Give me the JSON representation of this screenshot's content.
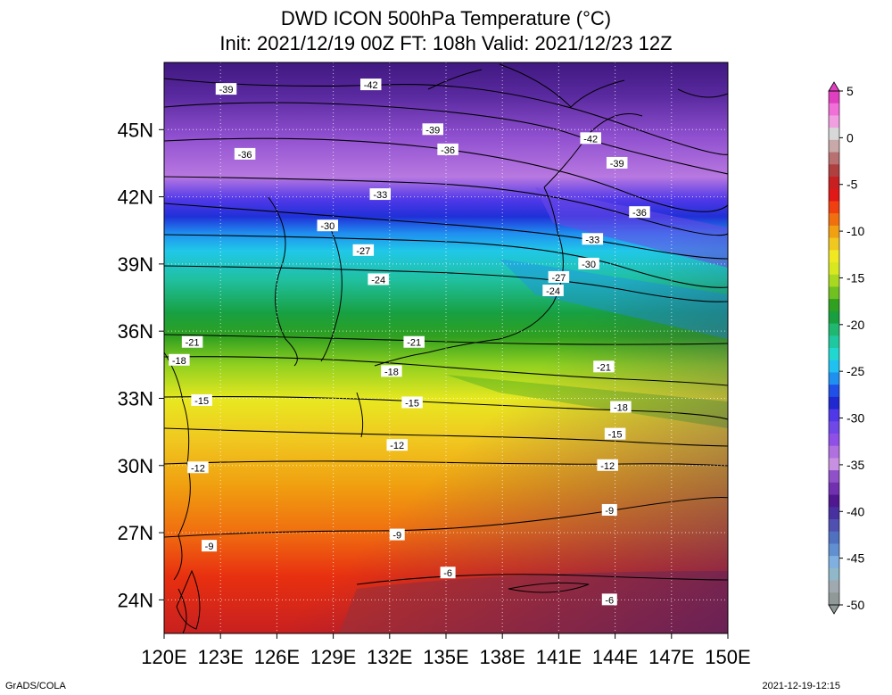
{
  "title": {
    "line1": "DWD ICON 500hPa Temperature (°C)",
    "line2": "Init: 2021/12/19 00Z  FT: 108h  Valid: 2021/12/23 12Z"
  },
  "map": {
    "lon_range": [
      120,
      150
    ],
    "lat_range": [
      22.5,
      48
    ],
    "lon_ticks": [
      "120E",
      "123E",
      "126E",
      "129E",
      "132E",
      "135E",
      "138E",
      "141E",
      "144E",
      "147E",
      "150E"
    ],
    "lat_ticks": [
      "45N",
      "42N",
      "39N",
      "36N",
      "33N",
      "30N",
      "27N",
      "24N"
    ],
    "contour_labels": [
      {
        "text": "-42",
        "lon": 131,
        "lat": 47
      },
      {
        "text": "-39",
        "lon": 123.3,
        "lat": 46.8
      },
      {
        "text": "-39",
        "lon": 134.3,
        "lat": 45.0
      },
      {
        "text": "-36",
        "lon": 135.1,
        "lat": 44.1
      },
      {
        "text": "-42",
        "lon": 142.7,
        "lat": 44.6
      },
      {
        "text": "-39",
        "lon": 144.1,
        "lat": 43.5
      },
      {
        "text": "-36",
        "lon": 124.3,
        "lat": 43.9
      },
      {
        "text": "-33",
        "lon": 131.5,
        "lat": 42.1
      },
      {
        "text": "-36",
        "lon": 145.3,
        "lat": 41.3
      },
      {
        "text": "-30",
        "lon": 128.7,
        "lat": 40.7
      },
      {
        "text": "-33",
        "lon": 142.8,
        "lat": 40.1
      },
      {
        "text": "-27",
        "lon": 130.6,
        "lat": 39.6
      },
      {
        "text": "-30",
        "lon": 142.6,
        "lat": 39.0
      },
      {
        "text": "-27",
        "lon": 141.0,
        "lat": 38.4
      },
      {
        "text": "-24",
        "lon": 131.4,
        "lat": 38.3
      },
      {
        "text": "-24",
        "lon": 140.7,
        "lat": 37.8
      },
      {
        "text": "-21",
        "lon": 121.5,
        "lat": 35.5
      },
      {
        "text": "-21",
        "lon": 133.3,
        "lat": 35.5
      },
      {
        "text": "-18",
        "lon": 120.8,
        "lat": 34.7
      },
      {
        "text": "-18",
        "lon": 132.1,
        "lat": 34.2
      },
      {
        "text": "-21",
        "lon": 143.4,
        "lat": 34.4
      },
      {
        "text": "-15",
        "lon": 122.0,
        "lat": 32.9
      },
      {
        "text": "-15",
        "lon": 133.2,
        "lat": 32.8
      },
      {
        "text": "-18",
        "lon": 144.3,
        "lat": 32.6
      },
      {
        "text": "-15",
        "lon": 144.0,
        "lat": 31.4
      },
      {
        "text": "-12",
        "lon": 132.4,
        "lat": 30.9
      },
      {
        "text": "-12",
        "lon": 121.8,
        "lat": 29.9
      },
      {
        "text": "-12",
        "lon": 143.6,
        "lat": 30.0
      },
      {
        "text": "-9",
        "lon": 143.7,
        "lat": 28.0
      },
      {
        "text": "-9",
        "lon": 132.4,
        "lat": 26.9
      },
      {
        "text": "-9",
        "lon": 122.4,
        "lat": 26.4
      },
      {
        "text": "-6",
        "lon": 135.1,
        "lat": 25.2
      },
      {
        "text": "-6",
        "lon": 143.7,
        "lat": 24.0
      }
    ]
  },
  "colorbar": {
    "labels": [
      "5",
      "0",
      "-5",
      "-10",
      "-15",
      "-20",
      "-25",
      "-30",
      "-35",
      "-40",
      "-45",
      "-50"
    ],
    "colors": [
      "#e040c0",
      "#f070d8",
      "#f0a0e0",
      "#d8d8d8",
      "#c8a8a8",
      "#b87070",
      "#b04040",
      "#c82020",
      "#e01818",
      "#f04010",
      "#f07010",
      "#f0a010",
      "#f0c820",
      "#f0e820",
      "#d8e820",
      "#a8d820",
      "#70c020",
      "#30a020",
      "#18a040",
      "#20b870",
      "#20c8a0",
      "#20d8d0",
      "#20c0f0",
      "#2090f0",
      "#2050e8",
      "#2028d0",
      "#5038e8",
      "#7048e8",
      "#9050e8",
      "#b070e0",
      "#c890e0",
      "#9050c8",
      "#7030b0",
      "#501890",
      "#4830a0",
      "#5050b0",
      "#5070c0",
      "#6090d0",
      "#80b0e0",
      "#90b8c8",
      "#a0a8b0",
      "#909898"
    ]
  },
  "credits": {
    "left": "GrADS/COLA",
    "right": "2021-12-19-12:15"
  }
}
